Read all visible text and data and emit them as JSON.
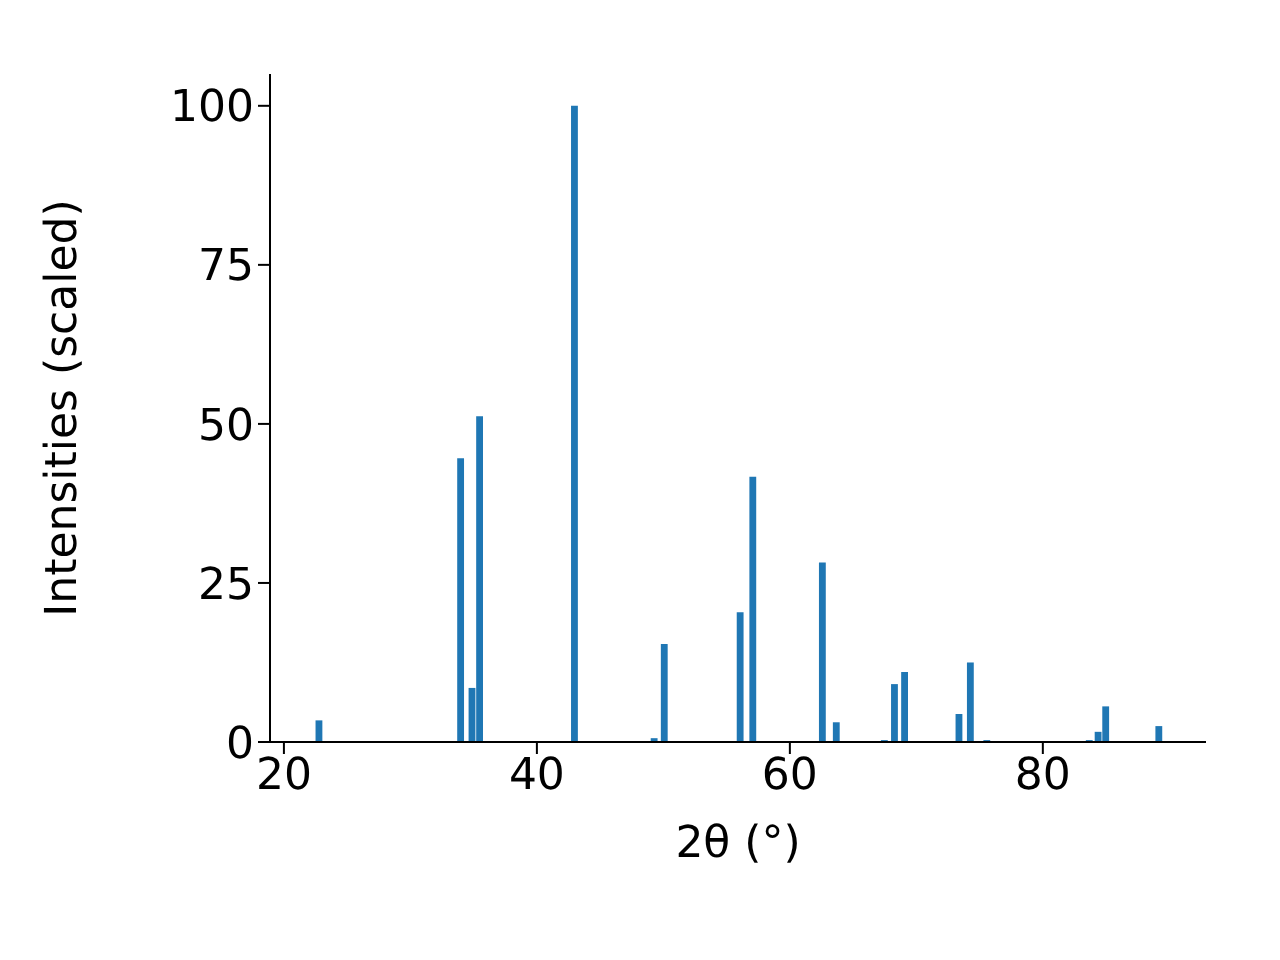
{
  "chart_data": {
    "type": "bar",
    "xlabel": "2θ (°)",
    "ylabel": "Intensities (scaled)",
    "x": [
      22.8,
      34.0,
      34.9,
      35.5,
      43.0,
      49.3,
      50.1,
      56.1,
      57.1,
      62.6,
      63.7,
      67.5,
      68.3,
      69.1,
      73.4,
      74.3,
      75.6,
      83.7,
      84.4,
      85.0,
      89.2
    ],
    "values": [
      3.4,
      44.6,
      8.5,
      51.2,
      100,
      0.6,
      15.4,
      20.4,
      41.7,
      28.2,
      3.1,
      0.3,
      9.1,
      11.0,
      4.4,
      12.5,
      0.3,
      0.3,
      1.6,
      5.6,
      2.5
    ],
    "color": "#1f77b4",
    "xlim": [
      18.9,
      92.9
    ],
    "xticks": [
      20,
      40,
      60,
      80
    ],
    "ylim": [
      0,
      105
    ],
    "yticks": [
      0,
      25,
      50,
      75,
      100
    ],
    "grid": false,
    "legend": false
  }
}
